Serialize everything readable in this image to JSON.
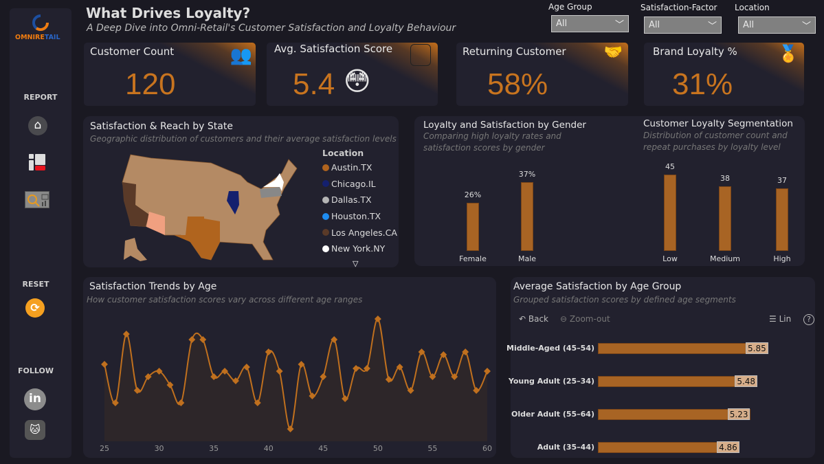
{
  "brand": {
    "logo_text_a": "OMNIRE",
    "logo_text_b": "TAIL"
  },
  "sidebar": {
    "report_label": "REPORT",
    "reset_label": "RESET",
    "follow_label": "FOLLOW",
    "nav": [
      {
        "icon": "home-icon"
      },
      {
        "icon": "dashboard-icon"
      },
      {
        "icon": "customer-analysis-icon"
      }
    ],
    "social": [
      {
        "icon": "linkedin-icon"
      },
      {
        "icon": "github-icon"
      }
    ]
  },
  "header": {
    "title": "What Drives Loyalty?",
    "subtitle": "A Deep Dive into Omni-Retail's Customer Satisfaction and Loyalty Behaviour"
  },
  "filters": [
    {
      "label": "Age Group",
      "value": "All"
    },
    {
      "label": "Satisfaction-Factor",
      "value": "All"
    },
    {
      "label": "Location",
      "value": "All"
    }
  ],
  "kpis": [
    {
      "title": "Customer Count",
      "value": "120",
      "icon": "people-icon"
    },
    {
      "title": "Avg. Satisfaction Score",
      "value": "5.4",
      "icon": "rating-icon",
      "emoji": "😳"
    },
    {
      "title": "Returning Customer",
      "value": "58%",
      "icon": "handshake-icon"
    },
    {
      "title": "Brand Loyalty %",
      "value": "31%",
      "icon": "award-hands-icon"
    }
  ],
  "map": {
    "title": "Satisfaction & Reach by State",
    "subtitle": "Geographic distribution of customers and their average satisfaction levels",
    "legend_title": "Location",
    "legend": [
      {
        "label": "Austin.TX",
        "color": "#b0641e"
      },
      {
        "label": "Chicago.IL",
        "color": "#14206e"
      },
      {
        "label": "Dallas.TX",
        "color": "#b4b4b4"
      },
      {
        "label": "Houston.TX",
        "color": "#1e8cf0"
      },
      {
        "label": "Los Angeles.CA",
        "color": "#5a3a28"
      },
      {
        "label": "New York.NY",
        "color": "#ffffff"
      }
    ],
    "base_color": "#b48a64"
  },
  "colors": {
    "accent": "#c8741f",
    "bar": "#a86424"
  },
  "chart_data": [
    {
      "type": "bar",
      "title": "Loyalty and Satisfaction by Gender",
      "subtitle": "Comparing high loyalty rates and satisfaction scores by gender",
      "categories": [
        "Female",
        "Male"
      ],
      "values": [
        26,
        37
      ],
      "labels": [
        "26%",
        "37%"
      ]
    },
    {
      "type": "bar",
      "title": "Customer Loyalty Segmentation",
      "subtitle": "Distribution of customer count and repeat purchases by loyalty level",
      "categories": [
        "Low",
        "Medium",
        "High"
      ],
      "values": [
        45,
        38,
        37
      ],
      "labels": [
        "45",
        "38",
        "37"
      ]
    },
    {
      "type": "area",
      "title": "Satisfaction Trends by Age",
      "subtitle": "How customer satisfaction scores vary across different age ranges",
      "x": [
        25,
        26,
        27,
        28,
        29,
        30,
        31,
        32,
        33,
        34,
        35,
        36,
        37,
        38,
        39,
        40,
        41,
        42,
        43,
        44,
        45,
        46,
        47,
        48,
        49,
        50,
        51,
        52,
        53,
        54,
        55,
        56,
        57,
        58,
        59,
        60
      ],
      "y": [
        6.0,
        3.2,
        8.2,
        4.1,
        5.1,
        5.5,
        4.5,
        3.2,
        7.8,
        7.8,
        5.1,
        5.5,
        4.8,
        5.8,
        3.2,
        6.9,
        5.5,
        1.3,
        6.0,
        3.7,
        5.1,
        7.8,
        3.5,
        5.7,
        5.7,
        9.3,
        4.9,
        5.8,
        4.1,
        6.9,
        5.1,
        6.7,
        5.1,
        6.9,
        4.1,
        5.5
      ],
      "xticks": [
        "25",
        "30",
        "35",
        "40",
        "45",
        "50",
        "55",
        "60"
      ],
      "xlim": [
        25,
        60
      ],
      "ylim": [
        0,
        10
      ],
      "grid": false
    },
    {
      "type": "bar",
      "orientation": "horizontal",
      "title": "Average Satisfaction by Age Group",
      "subtitle": "Grouped satisfaction scores by defined age segments",
      "categories": [
        "Middle-Aged (45–54)",
        "Young Adult (25–34)",
        "Older Adult (55–64)",
        "Adult (35–44)"
      ],
      "values": [
        5.85,
        5.48,
        5.23,
        4.86
      ],
      "labels": [
        "5.85",
        "5.48",
        "5.23",
        "4.86"
      ],
      "toolbar": {
        "back": "Back",
        "zoom_out": "Zoom-out",
        "lin": "Lin",
        "help": "?"
      }
    }
  ]
}
